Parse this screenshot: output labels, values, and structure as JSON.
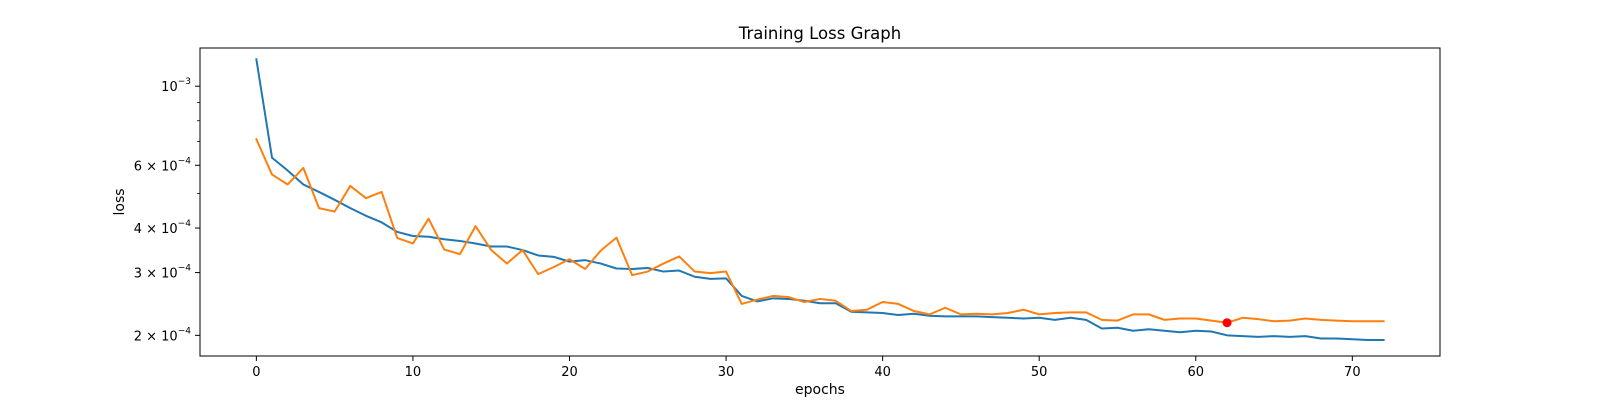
{
  "chart_data": {
    "type": "line",
    "title": "Training Loss Graph",
    "xlabel": "epochs",
    "ylabel": "loss",
    "xlim": [
      -3.6,
      75.6
    ],
    "ylim": [
      0.000175,
      0.00128
    ],
    "yscale": "log",
    "grid": false,
    "x_ticks": [
      0,
      10,
      20,
      30,
      40,
      50,
      60,
      70
    ],
    "y_ticks": [
      {
        "value": 0.001,
        "mantissa": "",
        "base": "10",
        "exp": "−3"
      },
      {
        "value": 0.0006,
        "mantissa": "6 × ",
        "base": "10",
        "exp": "−4"
      },
      {
        "value": 0.0004,
        "mantissa": "4 × ",
        "base": "10",
        "exp": "−4"
      },
      {
        "value": 0.0003,
        "mantissa": "3 × ",
        "base": "10",
        "exp": "−4"
      },
      {
        "value": 0.0002,
        "mantissa": "2 × ",
        "base": "10",
        "exp": "−4"
      }
    ],
    "x": [
      0,
      1,
      2,
      3,
      4,
      5,
      6,
      7,
      8,
      9,
      10,
      11,
      12,
      13,
      14,
      15,
      16,
      17,
      18,
      19,
      20,
      21,
      22,
      23,
      24,
      25,
      26,
      27,
      28,
      29,
      30,
      31,
      32,
      33,
      34,
      35,
      36,
      37,
      38,
      39,
      40,
      41,
      42,
      43,
      44,
      45,
      46,
      47,
      48,
      49,
      50,
      51,
      52,
      53,
      54,
      55,
      56,
      57,
      58,
      59,
      60,
      61,
      62,
      63,
      64,
      65,
      66,
      67,
      68,
      69,
      70,
      71,
      72
    ],
    "series": [
      {
        "color": "#1f77b4",
        "values": [
          0.00119,
          0.00063,
          0.00058,
          0.00053,
          0.000505,
          0.00048,
          0.000455,
          0.000433,
          0.000415,
          0.00039,
          0.00038,
          0.000378,
          0.000372,
          0.000368,
          0.000362,
          0.000355,
          0.000355,
          0.000347,
          0.000335,
          0.000332,
          0.000322,
          0.000325,
          0.000318,
          0.000308,
          0.000307,
          0.000309,
          0.000302,
          0.000304,
          0.000292,
          0.000288,
          0.000289,
          0.000258,
          0.000249,
          0.000254,
          0.000253,
          0.00025,
          0.000246,
          0.000246,
          0.000233,
          0.000232,
          0.000231,
          0.000228,
          0.00023,
          0.000227,
          0.000226,
          0.000226,
          0.000226,
          0.000225,
          0.000224,
          0.000223,
          0.000224,
          0.000221,
          0.000224,
          0.000221,
          0.000209,
          0.00021,
          0.000206,
          0.000208,
          0.000206,
          0.000204,
          0.000206,
          0.000205,
          0.0002,
          0.000199,
          0.000198,
          0.000199,
          0.000198,
          0.000199,
          0.000196,
          0.000196,
          0.000195,
          0.000194,
          0.000194
        ]
      },
      {
        "color": "#ff7f0e",
        "values": [
          0.00071,
          0.000565,
          0.00053,
          0.00059,
          0.000455,
          0.000445,
          0.000525,
          0.000485,
          0.000505,
          0.000375,
          0.000362,
          0.000425,
          0.000348,
          0.000338,
          0.000405,
          0.000347,
          0.000318,
          0.000347,
          0.000297,
          0.000311,
          0.000327,
          0.000307,
          0.000346,
          0.000376,
          0.000295,
          0.000302,
          0.000318,
          0.000333,
          0.000302,
          0.000299,
          0.000302,
          0.000245,
          0.000252,
          0.000258,
          0.000256,
          0.000248,
          0.000253,
          0.00025,
          0.000234,
          0.000236,
          0.000248,
          0.000245,
          0.000234,
          0.000229,
          0.000239,
          0.000229,
          0.00023,
          0.000229,
          0.000231,
          0.000236,
          0.000229,
          0.000231,
          0.000232,
          0.000232,
          0.000221,
          0.00022,
          0.000229,
          0.000229,
          0.000221,
          0.000223,
          0.000223,
          0.00022,
          0.000217,
          0.000224,
          0.000222,
          0.000219,
          0.00022,
          0.000223,
          0.000221,
          0.00022,
          0.000219,
          0.000219,
          0.000219
        ]
      }
    ],
    "highlight_point": {
      "x": 62,
      "y": 0.000217,
      "color": "#ff0000"
    }
  }
}
